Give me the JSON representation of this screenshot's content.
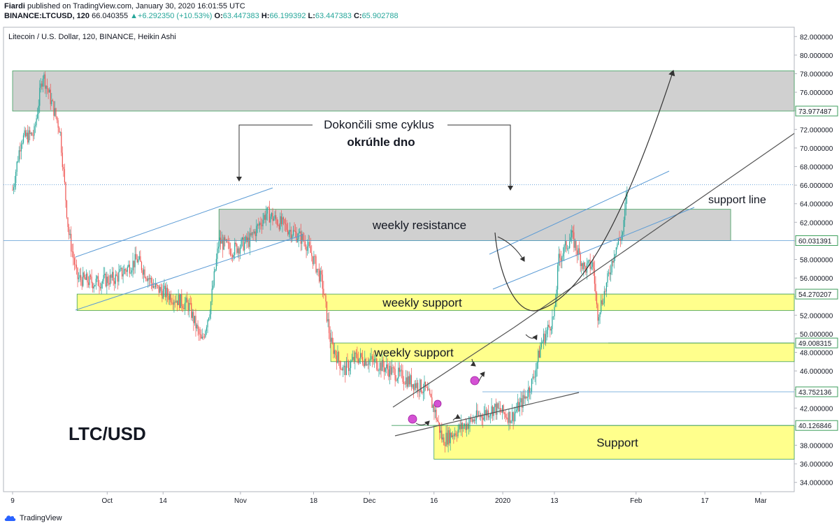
{
  "header": {
    "publisher": "Fiardi",
    "published_text": " published on TradingView.com, January 30, 2020 16:01:55 UTC",
    "symbol": "BINANCE:LTCUSD, 120",
    "last": "66.040355",
    "change_arrow": "▲",
    "change": "+6.292350 (+10.53%)",
    "o_label": "O:",
    "o_value": "63.447383",
    "h_label": "H:",
    "h_value": "66.199392",
    "l_label": "L:",
    "l_value": "63.447383",
    "c_label": "C:",
    "c_value": "65.902788"
  },
  "footer": {
    "brand": "TradingView"
  },
  "colors": {
    "up": "#26a69a",
    "down": "#ef5350",
    "resistance_zone": "#c8c8c8",
    "support_zone": "#ffff80",
    "trend_blue": "#5b9bd5",
    "marker": "#cc33cc"
  },
  "chart_data": {
    "type": "candlestick",
    "title": "Litecoin / U.S. Dollar, 120, BINANCE, Heikin Ashi",
    "ylim": [
      33,
      83
    ],
    "y_ticks": [
      "34.000000",
      "36.000000",
      "38.000000",
      "40.000000",
      "42.000000",
      "44.000000",
      "46.000000",
      "48.000000",
      "50.000000",
      "52.000000",
      "54.000000",
      "56.000000",
      "58.000000",
      "60.000000",
      "62.000000",
      "64.000000",
      "66.000000",
      "68.000000",
      "70.000000",
      "72.000000",
      "74.000000",
      "76.000000",
      "78.000000",
      "80.000000",
      "82.000000"
    ],
    "x_ticks": [
      "9",
      "Oct",
      "14",
      "Nov",
      "18",
      "Dec",
      "16",
      "2020",
      "13",
      "Feb",
      "17",
      "Mar"
    ],
    "price_path": [
      {
        "t": "2019-09-09",
        "p": 65.5
      },
      {
        "t": "2019-09-11",
        "p": 71
      },
      {
        "t": "2019-09-14",
        "p": 71.5
      },
      {
        "t": "2019-09-16",
        "p": 78
      },
      {
        "t": "2019-09-18",
        "p": 75
      },
      {
        "t": "2019-09-20",
        "p": 72
      },
      {
        "t": "2019-09-22",
        "p": 61
      },
      {
        "t": "2019-09-24",
        "p": 56
      },
      {
        "t": "2019-09-28",
        "p": 55.5
      },
      {
        "t": "2019-10-03",
        "p": 56
      },
      {
        "t": "2019-10-08",
        "p": 58
      },
      {
        "t": "2019-10-12",
        "p": 55
      },
      {
        "t": "2019-10-16",
        "p": 54
      },
      {
        "t": "2019-10-20",
        "p": 53
      },
      {
        "t": "2019-10-23",
        "p": 49
      },
      {
        "t": "2019-10-25",
        "p": 53
      },
      {
        "t": "2019-10-27",
        "p": 60
      },
      {
        "t": "2019-10-30",
        "p": 59
      },
      {
        "t": "2019-11-03",
        "p": 60
      },
      {
        "t": "2019-11-07",
        "p": 63
      },
      {
        "t": "2019-11-10",
        "p": 62
      },
      {
        "t": "2019-11-13",
        "p": 61
      },
      {
        "t": "2019-11-16",
        "p": 60
      },
      {
        "t": "2019-11-18",
        "p": 58
      },
      {
        "t": "2019-11-20",
        "p": 55.5
      },
      {
        "t": "2019-11-22",
        "p": 49
      },
      {
        "t": "2019-11-25",
        "p": 46
      },
      {
        "t": "2019-11-28",
        "p": 47.5
      },
      {
        "t": "2019-12-02",
        "p": 47
      },
      {
        "t": "2019-12-06",
        "p": 46
      },
      {
        "t": "2019-12-10",
        "p": 45
      },
      {
        "t": "2019-12-14",
        "p": 44
      },
      {
        "t": "2019-12-16",
        "p": 42
      },
      {
        "t": "2019-12-18",
        "p": 38.5
      },
      {
        "t": "2019-12-22",
        "p": 39.8
      },
      {
        "t": "2019-12-26",
        "p": 41
      },
      {
        "t": "2019-12-30",
        "p": 42
      },
      {
        "t": "2020-01-03",
        "p": 41
      },
      {
        "t": "2020-01-06",
        "p": 43
      },
      {
        "t": "2020-01-08",
        "p": 45
      },
      {
        "t": "2020-01-10",
        "p": 49
      },
      {
        "t": "2020-01-13",
        "p": 52
      },
      {
        "t": "2020-01-14",
        "p": 58
      },
      {
        "t": "2020-01-17",
        "p": 60.5
      },
      {
        "t": "2020-01-20",
        "p": 57
      },
      {
        "t": "2020-01-22",
        "p": 57.5
      },
      {
        "t": "2020-01-23",
        "p": 52
      },
      {
        "t": "2020-01-25",
        "p": 55
      },
      {
        "t": "2020-01-27",
        "p": 59
      },
      {
        "t": "2020-01-29",
        "p": 61
      },
      {
        "t": "2020-01-30",
        "p": 66
      }
    ],
    "price_labels": [
      {
        "value": 73.977487,
        "text": "73.977487"
      },
      {
        "value": 60.031391,
        "text": "60.031391"
      },
      {
        "value": 54.270207,
        "text": "54.270207"
      },
      {
        "value": 49.008315,
        "text": "49.008315"
      },
      {
        "value": 43.752136,
        "text": "43.752136"
      },
      {
        "value": 40.126846,
        "text": "40.126846"
      }
    ],
    "zones": [
      {
        "type": "resistance",
        "from": "2019-09-09",
        "to": "2020-04-15",
        "low": 73.977487,
        "high": 78.3,
        "label": ""
      },
      {
        "type": "resistance",
        "from": "2019-10-27",
        "to": "2020-02-23",
        "low": 60.031391,
        "high": 63.4,
        "label": "weekly resistance"
      },
      {
        "type": "support",
        "from": "2019-09-24",
        "to": "2020-04-15",
        "low": 52.5,
        "high": 54.270207,
        "label": "weekly support"
      },
      {
        "type": "support",
        "from": "2019-11-22",
        "to": "2020-04-15",
        "low": 47,
        "high": 49.008315,
        "label": "weekly support"
      },
      {
        "type": "support",
        "from": "2019-12-16",
        "to": "2020-04-15",
        "low": 36.5,
        "high": 40.126846,
        "label": "Support"
      }
    ],
    "annotations": {
      "cycle_line1": "Dokončili sme cyklus",
      "cycle_line2": "okrúhle dno",
      "support_line": "support line",
      "pair": "LTC/USD"
    }
  }
}
